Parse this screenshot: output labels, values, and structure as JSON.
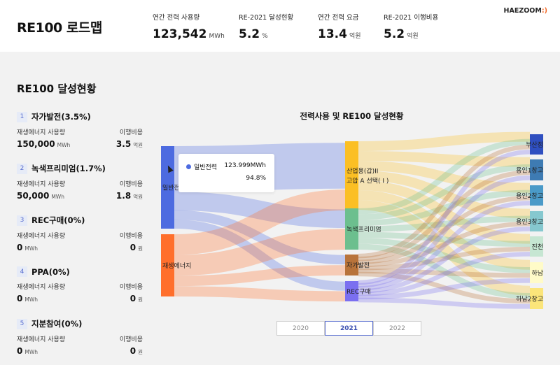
{
  "header": {
    "title": "RE100 로드맵",
    "logo": "HAEZOOM",
    "logo_mark": ":)",
    "kpis": [
      {
        "label": "연간 전력 사용량",
        "value": "123,542",
        "unit": "MWh"
      },
      {
        "label": "RE-2021 달성현황",
        "value": "5.2",
        "unit": "%"
      },
      {
        "label": "연간 전력 요금",
        "value": "13.4",
        "unit": "억원"
      },
      {
        "label": "RE-2021 이행비용",
        "value": "5.2",
        "unit": "억원"
      }
    ]
  },
  "section_title": "RE100 달성현황",
  "items": [
    {
      "num": "1",
      "title": "자가발전(3.5%)",
      "usage_label": "재생에너지 사용량",
      "cost_label": "이행비용",
      "usage": "150,000",
      "usage_unit": "MWh",
      "cost": "3.5",
      "cost_unit": "억원"
    },
    {
      "num": "2",
      "title": "녹색프리미엄(1.7%)",
      "usage_label": "재생에너지 사용량",
      "cost_label": "이행비용",
      "usage": "50,000",
      "usage_unit": "MWh",
      "cost": "1.8",
      "cost_unit": "억원"
    },
    {
      "num": "3",
      "title": "REC구매(0%)",
      "usage_label": "재생에너지 사용량",
      "cost_label": "이행비용",
      "usage": "0",
      "usage_unit": "MWh",
      "cost": "0",
      "cost_unit": "원"
    },
    {
      "num": "4",
      "title": "PPA(0%)",
      "usage_label": "재생에너지 사용량",
      "cost_label": "이행비용",
      "usage": "0",
      "usage_unit": "MWh",
      "cost": "0",
      "cost_unit": "원"
    },
    {
      "num": "5",
      "title": "지분참여(0%)",
      "usage_label": "재생에너지 사용량",
      "cost_label": "이행비용",
      "usage": "0",
      "usage_unit": "MWh",
      "cost": "0",
      "cost_unit": "원"
    }
  ],
  "chart": {
    "title": "전력사용 및 RE100 달성현황",
    "tooltip": {
      "name": "일반전력",
      "value": "123.999MWh",
      "percent": "94.8%"
    },
    "nodes": [
      {
        "id": "g",
        "label": "일반전",
        "col": 0,
        "color": "#4d6be0"
      },
      {
        "id": "r",
        "label": "재생에너지",
        "col": 0,
        "color": "#ff6f2c"
      },
      {
        "id": "ind",
        "label": "산업용(갑)II",
        "label2": "고압 A 선택( I )",
        "col": 1,
        "color": "#fbbf24"
      },
      {
        "id": "grn",
        "label": "녹색프리미엄",
        "col": 1,
        "color": "#6cbf8e"
      },
      {
        "id": "self",
        "label": "자가발전",
        "col": 1,
        "color": "#b8733a"
      },
      {
        "id": "rec",
        "label": "REC구매",
        "col": 1,
        "color": "#7b6ff0"
      },
      {
        "id": "b",
        "label": "부산점",
        "col": 2,
        "color": "#2f4fc0"
      },
      {
        "id": "y1",
        "label": "용인1창고",
        "col": 2,
        "color": "#3e7bb3"
      },
      {
        "id": "y2",
        "label": "용인2창고",
        "col": 2,
        "color": "#4a9ac8"
      },
      {
        "id": "y3",
        "label": "용인3창고",
        "col": 2,
        "color": "#86c8cf"
      },
      {
        "id": "j",
        "label": "진천",
        "col": 2,
        "color": "#c6e6d2"
      },
      {
        "id": "h",
        "label": "하남",
        "col": 2,
        "color": "#fffbc8"
      },
      {
        "id": "h2",
        "label": "하남2창고",
        "col": 2,
        "color": "#fbe57a"
      }
    ],
    "links": [
      [
        "g",
        "ind",
        5
      ],
      [
        "g",
        "grn",
        2
      ],
      [
        "g",
        "self",
        1
      ],
      [
        "g",
        "rec",
        1
      ],
      [
        "r",
        "ind",
        2
      ],
      [
        "r",
        "grn",
        2
      ],
      [
        "r",
        "self",
        1
      ],
      [
        "r",
        "rec",
        1
      ],
      [
        "ind",
        "b",
        1
      ],
      [
        "ind",
        "y1",
        1
      ],
      [
        "ind",
        "y2",
        1
      ],
      [
        "ind",
        "y3",
        1
      ],
      [
        "ind",
        "j",
        1
      ],
      [
        "ind",
        "h",
        1
      ],
      [
        "ind",
        "h2",
        1
      ],
      [
        "grn",
        "b",
        1
      ],
      [
        "grn",
        "y1",
        1
      ],
      [
        "grn",
        "y2",
        1
      ],
      [
        "grn",
        "y3",
        1
      ],
      [
        "grn",
        "j",
        1
      ],
      [
        "grn",
        "h",
        1
      ],
      [
        "grn",
        "h2",
        1
      ],
      [
        "self",
        "b",
        1
      ],
      [
        "self",
        "y1",
        1
      ],
      [
        "self",
        "y2",
        1
      ],
      [
        "self",
        "y3",
        1
      ],
      [
        "self",
        "j",
        1
      ],
      [
        "self",
        "h",
        1
      ],
      [
        "self",
        "h2",
        1
      ],
      [
        "rec",
        "b",
        1
      ],
      [
        "rec",
        "y1",
        1
      ],
      [
        "rec",
        "y2",
        1
      ],
      [
        "rec",
        "y3",
        1
      ],
      [
        "rec",
        "j",
        1
      ],
      [
        "rec",
        "h",
        1
      ],
      [
        "rec",
        "h2",
        1
      ]
    ],
    "years": [
      "2020",
      "2021",
      "2022"
    ],
    "active_year": "2021"
  }
}
